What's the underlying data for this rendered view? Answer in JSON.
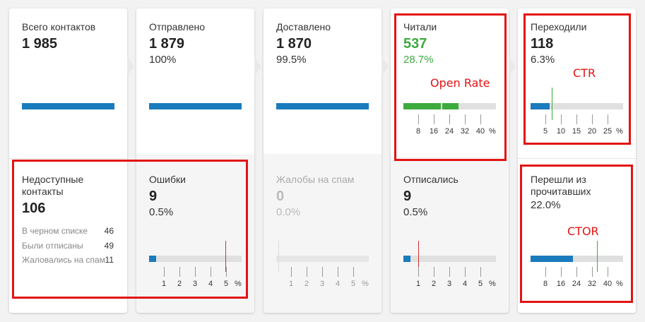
{
  "cards": {
    "total": {
      "label": "Всего контактов",
      "count": "1 985"
    },
    "sent": {
      "label": "Отправлено",
      "count": "1 879",
      "pct": "100%"
    },
    "delivered": {
      "label": "Доставлено",
      "count": "1 870",
      "pct": "99.5%"
    },
    "read": {
      "label": "Читали",
      "count": "537",
      "pct": "28.7%",
      "fill_fraction": 0.287,
      "ticks": [
        "8",
        "16",
        "24",
        "32",
        "40",
        "%"
      ]
    },
    "clicked": {
      "label": "Переходили",
      "count": "118",
      "pct": "6.3%",
      "fill_fraction": 0.063,
      "ticks": [
        "5",
        "10",
        "15",
        "20",
        "25",
        "%"
      ]
    },
    "unavailable": {
      "label": "Недоступные контакты",
      "count": "106",
      "details": [
        {
          "label": "В черном списке",
          "value": "46"
        },
        {
          "label": "Были отписаны",
          "value": "49"
        },
        {
          "label": "Жаловались на спам",
          "value": "11"
        }
      ]
    },
    "errors": {
      "label": "Ошибки",
      "count": "9",
      "pct": "0.5%",
      "fill_fraction": 0.005,
      "ticks": [
        "1",
        "2",
        "3",
        "4",
        "5",
        "%"
      ]
    },
    "spam": {
      "label": "Жалобы на спам",
      "count": "0",
      "pct": "0.0%",
      "fill_fraction": 0.0,
      "ticks": [
        "1",
        "2",
        "3",
        "4",
        "5",
        "%"
      ]
    },
    "unsub": {
      "label": "Отписались",
      "count": "9",
      "pct": "0.5%",
      "fill_fraction": 0.005,
      "ticks": [
        "1",
        "2",
        "3",
        "4",
        "5",
        "%"
      ]
    },
    "ctor": {
      "label": "Перешли из прочитавших",
      "pct": "22.0%",
      "fill_fraction": 0.22,
      "ticks": [
        "8",
        "16",
        "24",
        "32",
        "40",
        "%"
      ]
    }
  },
  "annotations": {
    "open_rate": "Open Rate",
    "ctr": "CTR",
    "ctor": "CTOR"
  },
  "colors": {
    "blue": "#1a7bbd",
    "green": "#3daa3d",
    "red_marker": "#c33",
    "annotation_red": "#e31313"
  }
}
